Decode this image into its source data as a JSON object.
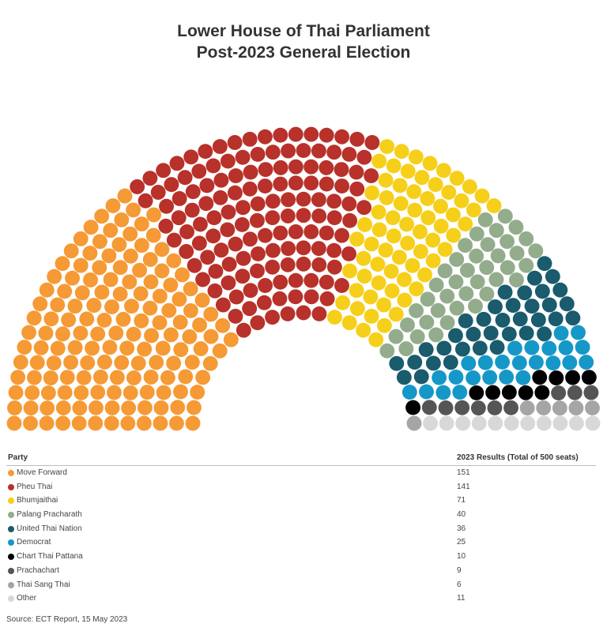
{
  "title": {
    "line1": "Lower House of Thai Parliament",
    "line2": "Post-2023 General Election"
  },
  "chart_data": {
    "type": "parliament",
    "total_seats": 500,
    "categories": [
      "Move Forward",
      "Pheu Thai",
      "Bhumjaithai",
      "Palang Pracharath",
      "United Thai Nation",
      "Democrat",
      "Chart Thai Pattana",
      "Prachachart",
      "Thai Sang Thai",
      "Other"
    ],
    "values": [
      151,
      141,
      71,
      40,
      36,
      25,
      10,
      9,
      6,
      11
    ],
    "colors": [
      "#f59a35",
      "#b8312a",
      "#f6cf1a",
      "#93ad8c",
      "#1a5b6d",
      "#1598c8",
      "#000000",
      "#555555",
      "#a5a5a5",
      "#d8d8d8"
    ]
  },
  "table": {
    "header_party": "Party",
    "header_results": "2023 Results (Total of 500 seats)",
    "rows": [
      {
        "party": "Move Forward",
        "seats": "151"
      },
      {
        "party": "Pheu Thai",
        "seats": "141"
      },
      {
        "party": "Bhumjaithai",
        "seats": "71"
      },
      {
        "party": "Palang Pracharath",
        "seats": "40"
      },
      {
        "party": "United Thai Nation",
        "seats": "36"
      },
      {
        "party": "Democrat",
        "seats": "25"
      },
      {
        "party": "Chart Thai Pattana",
        "seats": "10"
      },
      {
        "party": "Prachachart",
        "seats": "9"
      },
      {
        "party": "Thai Sang Thai",
        "seats": "6"
      },
      {
        "party": "Other",
        "seats": "11"
      }
    ]
  },
  "source": "Source: ECT Report, 15 May 2023"
}
